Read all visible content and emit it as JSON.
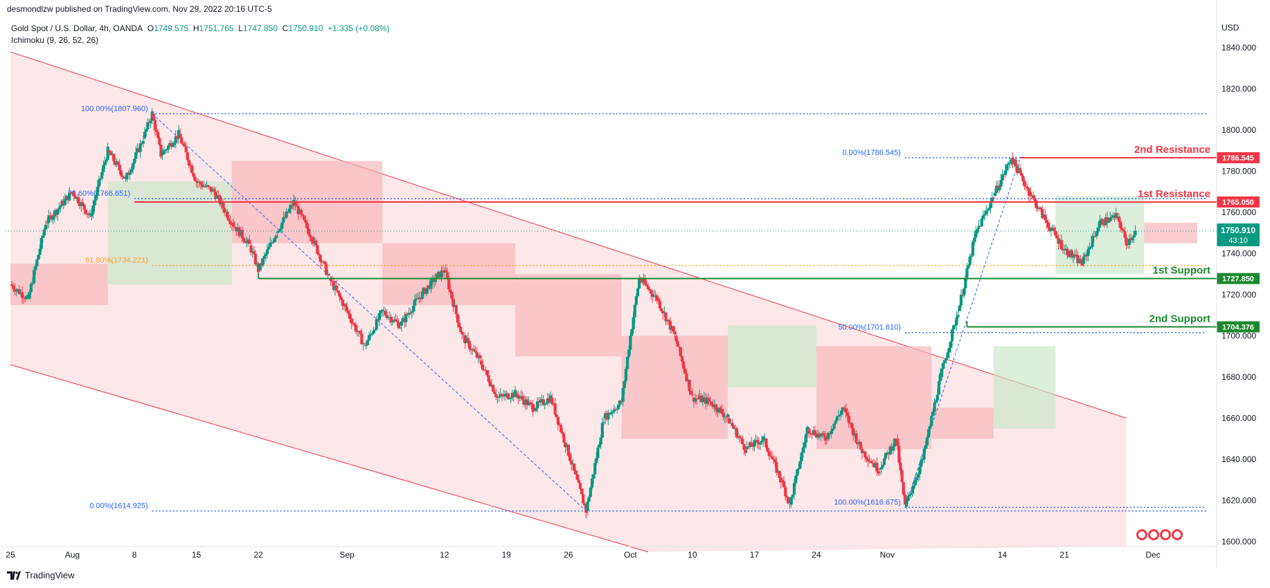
{
  "published": "desmondlzw published on TradingView.com, Nov 29, 2022 20:16 UTC-5",
  "footer": {
    "brand": "TradingView"
  },
  "symbol": {
    "name": "Gold Spot / U.S. Dollar, 4h, OANDA",
    "o_label": "O",
    "o": "1749.575",
    "h_label": "H",
    "h": "1751.765",
    "l_label": "L",
    "l": "1747.850",
    "c_label": "C",
    "c": "1750.910",
    "change": "+1.335 (+0.08%)",
    "indicator": "Ichimoku (9, 26, 52, 26)"
  },
  "colors": {
    "up": "#089981",
    "down": "#f23645",
    "resistance": "#f23645",
    "support": "#1b8a2f",
    "channel_fill": "#fde3e5",
    "fib": "#2962ff",
    "fib_golden": "#f5a623",
    "axis_text": "#131722"
  },
  "chart_data": {
    "type": "candlestick",
    "currency": "USD",
    "ylim": [
      1595,
      1845
    ],
    "y_ticks": [
      "1600.000",
      "1620.000",
      "1640.000",
      "1660.000",
      "1680.000",
      "1700.000",
      "1720.000",
      "1740.000",
      "1760.000",
      "1780.000",
      "1800.000",
      "1820.000",
      "1840.000"
    ],
    "x_ticks": [
      {
        "label": "25",
        "date": "2022-07-25"
      },
      {
        "label": "Aug",
        "date": "2022-08-01"
      },
      {
        "label": "8",
        "date": "2022-08-08"
      },
      {
        "label": "15",
        "date": "2022-08-15"
      },
      {
        "label": "22",
        "date": "2022-08-22"
      },
      {
        "label": "Sep",
        "date": "2022-09-01"
      },
      {
        "label": "12",
        "date": "2022-09-12"
      },
      {
        "label": "19",
        "date": "2022-09-19"
      },
      {
        "label": "26",
        "date": "2022-09-26"
      },
      {
        "label": "Oct",
        "date": "2022-10-03"
      },
      {
        "label": "10",
        "date": "2022-10-10"
      },
      {
        "label": "17",
        "date": "2022-10-17"
      },
      {
        "label": "24",
        "date": "2022-10-24"
      },
      {
        "label": "Nov",
        "date": "2022-11-01"
      },
      {
        "label": "14",
        "date": "2022-11-14"
      },
      {
        "label": "21",
        "date": "2022-11-21"
      },
      {
        "label": "Dec",
        "date": "2022-12-01"
      }
    ],
    "price_path": [
      [
        "2022-07-25",
        1725
      ],
      [
        "2022-07-27",
        1718
      ],
      [
        "2022-07-29",
        1755
      ],
      [
        "2022-08-01",
        1770
      ],
      [
        "2022-08-03",
        1758
      ],
      [
        "2022-08-05",
        1790
      ],
      [
        "2022-08-07",
        1776
      ],
      [
        "2022-08-09",
        1796
      ],
      [
        "2022-08-10",
        1808
      ],
      [
        "2022-08-11",
        1788
      ],
      [
        "2022-08-13",
        1798
      ],
      [
        "2022-08-15",
        1775
      ],
      [
        "2022-08-17",
        1770
      ],
      [
        "2022-08-19",
        1755
      ],
      [
        "2022-08-21",
        1744
      ],
      [
        "2022-08-22",
        1732
      ],
      [
        "2022-08-24",
        1750
      ],
      [
        "2022-08-26",
        1765
      ],
      [
        "2022-08-28",
        1748
      ],
      [
        "2022-08-30",
        1728
      ],
      [
        "2022-09-01",
        1712
      ],
      [
        "2022-09-03",
        1695
      ],
      [
        "2022-09-05",
        1712
      ],
      [
        "2022-09-07",
        1705
      ],
      [
        "2022-09-09",
        1718
      ],
      [
        "2022-09-11",
        1728
      ],
      [
        "2022-09-12",
        1732
      ],
      [
        "2022-09-14",
        1700
      ],
      [
        "2022-09-16",
        1688
      ],
      [
        "2022-09-18",
        1670
      ],
      [
        "2022-09-20",
        1672
      ],
      [
        "2022-09-22",
        1665
      ],
      [
        "2022-09-24",
        1670
      ],
      [
        "2022-09-26",
        1643
      ],
      [
        "2022-09-28",
        1615
      ],
      [
        "2022-09-30",
        1660
      ],
      [
        "2022-10-02",
        1668
      ],
      [
        "2022-10-03",
        1700
      ],
      [
        "2022-10-04",
        1728
      ],
      [
        "2022-10-06",
        1718
      ],
      [
        "2022-10-08",
        1700
      ],
      [
        "2022-10-10",
        1670
      ],
      [
        "2022-10-12",
        1668
      ],
      [
        "2022-10-14",
        1660
      ],
      [
        "2022-10-16",
        1645
      ],
      [
        "2022-10-18",
        1650
      ],
      [
        "2022-10-20",
        1630
      ],
      [
        "2022-10-21",
        1618
      ],
      [
        "2022-10-23",
        1655
      ],
      [
        "2022-10-25",
        1650
      ],
      [
        "2022-10-27",
        1665
      ],
      [
        "2022-10-29",
        1645
      ],
      [
        "2022-10-31",
        1635
      ],
      [
        "2022-11-02",
        1650
      ],
      [
        "2022-11-03",
        1617
      ],
      [
        "2022-11-05",
        1640
      ],
      [
        "2022-11-07",
        1680
      ],
      [
        "2022-11-09",
        1712
      ],
      [
        "2022-11-11",
        1750
      ],
      [
        "2022-11-13",
        1768
      ],
      [
        "2022-11-15",
        1786.5
      ],
      [
        "2022-11-17",
        1770
      ],
      [
        "2022-11-19",
        1755
      ],
      [
        "2022-11-21",
        1742
      ],
      [
        "2022-11-23",
        1735
      ],
      [
        "2022-11-25",
        1755
      ],
      [
        "2022-11-27",
        1758
      ],
      [
        "2022-11-28",
        1745
      ],
      [
        "2022-11-29",
        1750.9
      ]
    ],
    "current_price": {
      "value": "1750.910",
      "countdown": "43:10"
    },
    "levels": [
      {
        "name": "2nd Resistance",
        "value": 1786.545,
        "price_label": "1786.545",
        "kind": "resistance",
        "from": "2022-11-16"
      },
      {
        "name": "1st Resistance",
        "value": 1765.05,
        "price_label": "1765.050",
        "kind": "resistance",
        "from": "2022-08-08"
      },
      {
        "name": "1st Support",
        "value": 1727.85,
        "price_label": "1727.850",
        "kind": "support",
        "from": "2022-08-22"
      },
      {
        "name": "2nd Support",
        "value": 1704.376,
        "price_label": "1704.376",
        "kind": "support",
        "from": "2022-11-10"
      }
    ],
    "fib_labels": [
      {
        "text": "100.00%(1807.960)",
        "value": 1807.96,
        "from": "2022-08-10",
        "to": "2022-12-07"
      },
      {
        "text": "78.60%(1766.651)",
        "value": 1766.651,
        "from": "2022-08-08",
        "to": "2022-12-07"
      },
      {
        "text": "61.80%(1734.221)",
        "value": 1734.221,
        "from": "2022-08-10",
        "to": "2022-12-07",
        "golden": true
      },
      {
        "text": "0.00%(1614.925)",
        "value": 1614.925,
        "from": "2022-08-10",
        "to": "2022-12-07"
      },
      {
        "text": "0.00%(1786.545)",
        "value": 1786.545,
        "from": "2022-11-03",
        "to": "2022-12-07"
      },
      {
        "text": "50.00%(1701.610)",
        "value": 1701.61,
        "from": "2022-11-03",
        "to": "2022-12-07"
      },
      {
        "text": "100.00%(1616.675)",
        "value": 1616.675,
        "from": "2022-11-03",
        "to": "2022-12-07"
      }
    ],
    "fib_trend_lines": [
      [
        [
          "2022-08-10",
          1807.96
        ],
        [
          "2022-09-28",
          1614.925
        ]
      ],
      [
        [
          "2022-11-03",
          1616.675
        ],
        [
          "2022-11-16",
          1786.545
        ]
      ]
    ],
    "channel": {
      "upper": [
        [
          "2022-07-25",
          1838
        ],
        [
          "2022-11-28",
          1660
        ]
      ],
      "lower": [
        [
          "2022-07-25",
          1686
        ],
        [
          "2022-10-05",
          1595
        ]
      ],
      "end": "2022-11-28"
    },
    "ichimoku_cloud": [
      {
        "from": "2022-07-25",
        "to": "2022-08-05",
        "top": 1735,
        "bottom": 1715,
        "bullish": false
      },
      {
        "from": "2022-08-05",
        "to": "2022-08-19",
        "top": 1775,
        "bottom": 1725,
        "bullish": true
      },
      {
        "from": "2022-08-19",
        "to": "2022-09-05",
        "top": 1785,
        "bottom": 1745,
        "bullish": false
      },
      {
        "from": "2022-09-05",
        "to": "2022-09-20",
        "top": 1745,
        "bottom": 1715,
        "bullish": false
      },
      {
        "from": "2022-09-20",
        "to": "2022-10-02",
        "top": 1730,
        "bottom": 1690,
        "bullish": false
      },
      {
        "from": "2022-10-02",
        "to": "2022-10-14",
        "top": 1700,
        "bottom": 1650,
        "bullish": false
      },
      {
        "from": "2022-10-14",
        "to": "2022-10-24",
        "top": 1705,
        "bottom": 1675,
        "bullish": true
      },
      {
        "from": "2022-10-24",
        "to": "2022-11-06",
        "top": 1695,
        "bottom": 1645,
        "bullish": false
      },
      {
        "from": "2022-11-06",
        "to": "2022-11-13",
        "top": 1665,
        "bottom": 1650,
        "bullish": false
      },
      {
        "from": "2022-11-13",
        "to": "2022-11-20",
        "top": 1695,
        "bottom": 1655,
        "bullish": true
      },
      {
        "from": "2022-11-20",
        "to": "2022-11-30",
        "top": 1768,
        "bottom": 1730,
        "bullish": true
      },
      {
        "from": "2022-11-30",
        "to": "2022-12-06",
        "top": 1755,
        "bottom": 1745,
        "bullish": false
      }
    ]
  }
}
